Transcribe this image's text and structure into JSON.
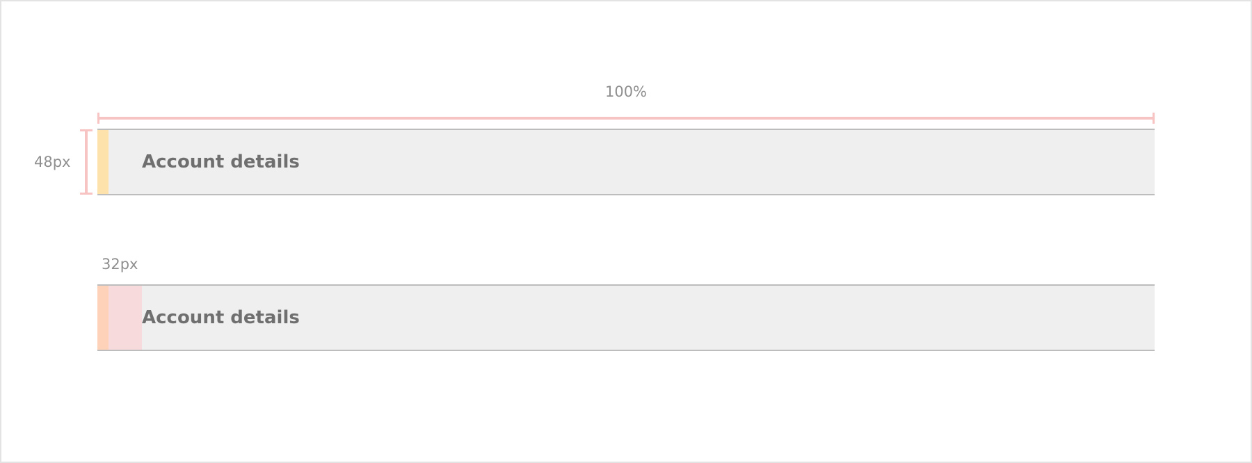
{
  "dimensions": {
    "width_label": "100%",
    "height_label": "48px",
    "padding_label": "32px"
  },
  "headers": [
    {
      "title": "Account details",
      "accent_color": "#fde2ac"
    },
    {
      "title": "Account details",
      "accent_color": "#fdd2b8",
      "padding_highlight_color": "#f6dadc"
    }
  ],
  "colors": {
    "dimension_line": "#f7c3c3",
    "header_background": "#efefef",
    "header_border": "#bdbdbd",
    "title_text": "#6f6f6f",
    "annotation_text": "#8f8f8f"
  }
}
